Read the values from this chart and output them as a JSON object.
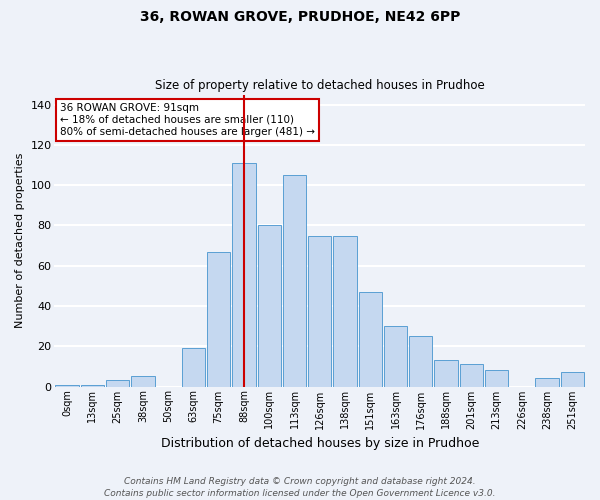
{
  "title": "36, ROWAN GROVE, PRUDHOE, NE42 6PP",
  "subtitle": "Size of property relative to detached houses in Prudhoe",
  "xlabel": "Distribution of detached houses by size in Prudhoe",
  "ylabel": "Number of detached properties",
  "bar_labels": [
    "0sqm",
    "13sqm",
    "25sqm",
    "38sqm",
    "50sqm",
    "63sqm",
    "75sqm",
    "88sqm",
    "100sqm",
    "113sqm",
    "126sqm",
    "138sqm",
    "151sqm",
    "163sqm",
    "176sqm",
    "188sqm",
    "201sqm",
    "213sqm",
    "226sqm",
    "238sqm",
    "251sqm"
  ],
  "bar_heights": [
    1,
    1,
    3,
    5,
    0,
    19,
    67,
    111,
    80,
    105,
    75,
    75,
    47,
    30,
    25,
    13,
    11,
    8,
    0,
    4,
    7
  ],
  "bar_color": "#c5d8f0",
  "bar_edge_color": "#5a9fd4",
  "vline_color": "#cc0000",
  "vline_pos": 7.5,
  "annotation_title": "36 ROWAN GROVE: 91sqm",
  "annotation_line1": "← 18% of detached houses are smaller (110)",
  "annotation_line2": "80% of semi-detached houses are larger (481) →",
  "annotation_box_color": "#ffffff",
  "annotation_box_edge": "#cc0000",
  "footnote1": "Contains HM Land Registry data © Crown copyright and database right 2024.",
  "footnote2": "Contains public sector information licensed under the Open Government Licence v3.0.",
  "ylim": [
    0,
    145
  ],
  "yticks": [
    0,
    20,
    40,
    60,
    80,
    100,
    120,
    140
  ],
  "bg_color": "#eef2f9",
  "grid_color": "#ffffff",
  "title_fontsize": 10,
  "subtitle_fontsize": 8.5,
  "ylabel_fontsize": 8,
  "xlabel_fontsize": 9,
  "tick_fontsize": 7,
  "annot_fontsize": 7.5,
  "footnote_fontsize": 6.5
}
